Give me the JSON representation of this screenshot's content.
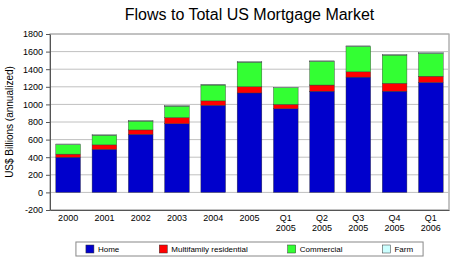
{
  "chart_data": {
    "type": "bar",
    "title": "Flows to Total US Mortgage Market",
    "y_label": "US$ Billions (annualized)",
    "categories": [
      "2000",
      "2001",
      "2002",
      "2003",
      "2004",
      "2005",
      "Q1 2005",
      "Q2 2005",
      "Q3 2005",
      "Q4 2005",
      "Q1 2006"
    ],
    "series": [
      {
        "name": "Home",
        "color": "#0000cc",
        "values": [
          400,
          490,
          660,
          780,
          990,
          1130,
          950,
          1150,
          1310,
          1150,
          1250
        ]
      },
      {
        "name": "Multifamily residential",
        "color": "#ff0000",
        "values": [
          35,
          50,
          50,
          70,
          50,
          70,
          50,
          70,
          60,
          90,
          70
        ]
      },
      {
        "name": "Commercial",
        "color": "#33ff33",
        "values": [
          110,
          110,
          100,
          130,
          180,
          280,
          190,
          270,
          290,
          320,
          260
        ]
      },
      {
        "name": "Farm",
        "color": "#ccffff",
        "values": [
          5,
          5,
          5,
          5,
          5,
          5,
          5,
          5,
          5,
          5,
          10
        ]
      }
    ],
    "ylim": [
      -200,
      1800
    ],
    "yticks": [
      -200,
      0,
      200,
      400,
      600,
      800,
      1000,
      1200,
      1400,
      1600,
      1800
    ],
    "stacked": true,
    "grid": true,
    "legend": "bottom"
  }
}
